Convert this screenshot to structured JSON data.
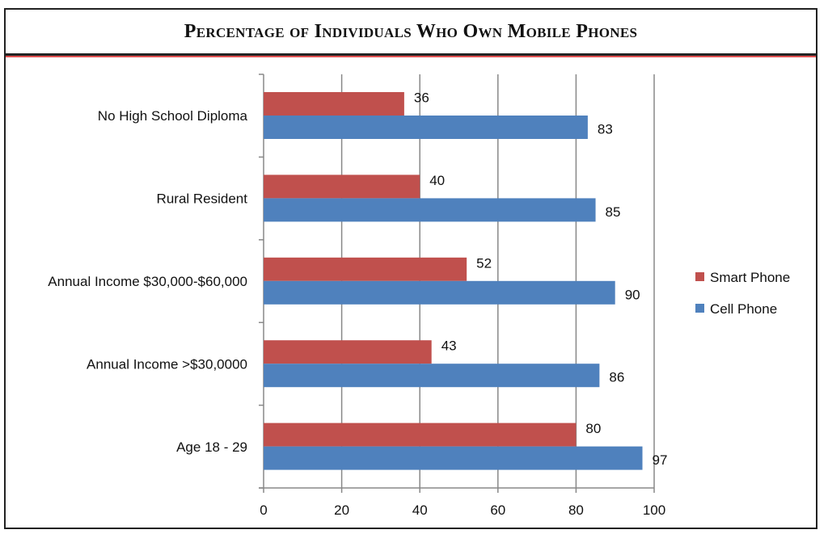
{
  "chart_data": {
    "type": "bar",
    "orientation": "horizontal",
    "title": "Percentage of Individuals Who Own Mobile Phones",
    "categories": [
      "No High School Diploma",
      "Rural Resident",
      "Annual Income $30,000-$60,000",
      "Annual Income >$30,0000",
      "Age 18 - 29"
    ],
    "series": [
      {
        "name": "Smart Phone",
        "color": "#c0504d",
        "values": [
          36,
          40,
          52,
          43,
          80
        ]
      },
      {
        "name": "Cell Phone",
        "color": "#4f81bd",
        "values": [
          83,
          85,
          90,
          86,
          97
        ]
      }
    ],
    "xlim": [
      0,
      100
    ],
    "xticks": [
      "0",
      "20",
      "40",
      "60",
      "80",
      "100"
    ],
    "xtick_values": [
      0,
      20,
      40,
      60,
      80,
      100
    ],
    "grid": true,
    "legend_position": "right",
    "data_labels": true
  }
}
